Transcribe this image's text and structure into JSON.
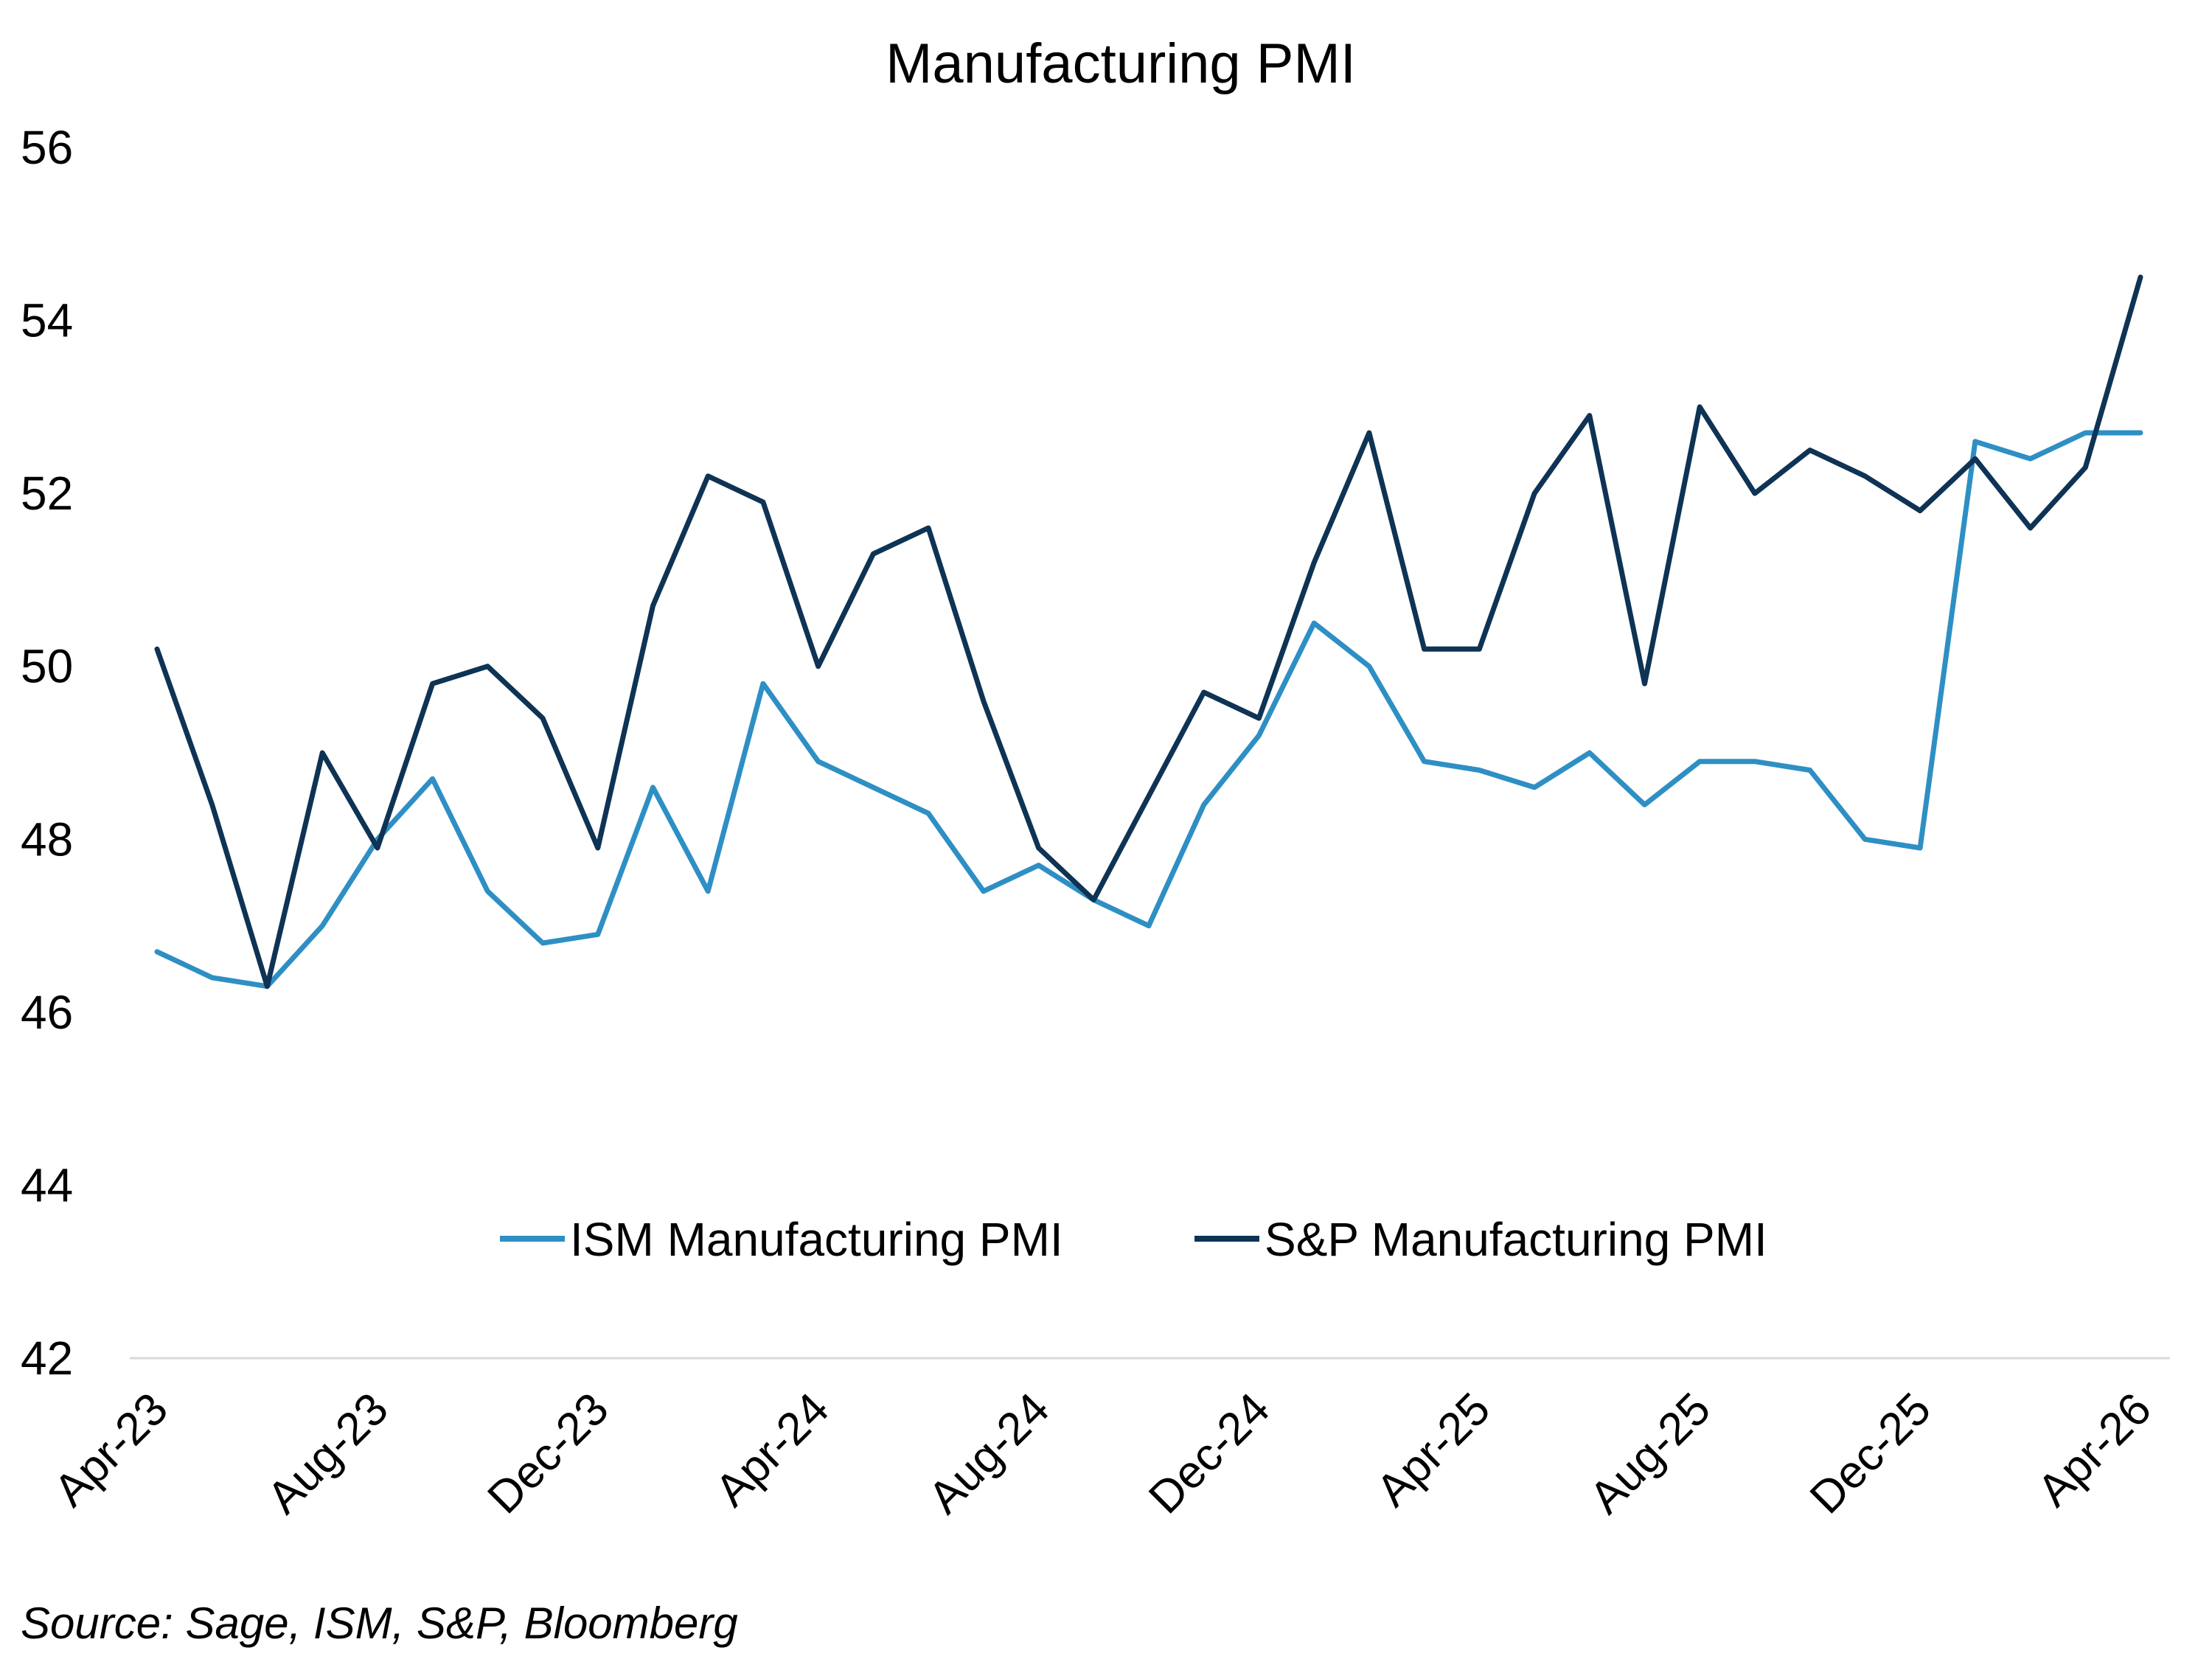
{
  "chart_data": {
    "type": "line",
    "title": "Manufacturing PMI",
    "source": "Source: Sage, ISM, S&P, Bloomberg",
    "x": [
      "Apr-23",
      "May-23",
      "Jun-23",
      "Jul-23",
      "Aug-23",
      "Sep-23",
      "Oct-23",
      "Nov-23",
      "Dec-23",
      "Jan-24",
      "Feb-24",
      "Mar-24",
      "Apr-24",
      "May-24",
      "Jun-24",
      "Jul-24",
      "Aug-24",
      "Sep-24",
      "Oct-24",
      "Nov-24",
      "Dec-24",
      "Jan-25",
      "Feb-25",
      "Mar-25",
      "Apr-25",
      "May-25",
      "Jun-25",
      "Jul-25",
      "Aug-25",
      "Sep-25",
      "Oct-25",
      "Nov-25",
      "Dec-25",
      "Jan-26",
      "Feb-26",
      "Mar-26",
      "Apr-26"
    ],
    "x_tick_labels": [
      "Apr-23",
      "Aug-23",
      "Dec-23",
      "Apr-24",
      "Aug-24",
      "Dec-24",
      "Apr-25",
      "Aug-25",
      "Dec-25",
      "Apr-26"
    ],
    "y_tick_labels": [
      "42",
      "44",
      "46",
      "48",
      "50",
      "52",
      "54",
      "56"
    ],
    "ylim": [
      42,
      56
    ],
    "grid": false,
    "legend_position": "bottom-center-inside",
    "series": [
      {
        "name": "ISM Manufacturing PMI",
        "color": "#2e8fc4",
        "values": [
          46.7,
          46.4,
          46.3,
          47.0,
          48.0,
          48.7,
          47.4,
          46.8,
          46.9,
          48.6,
          47.4,
          49.8,
          48.9,
          48.6,
          48.3,
          47.4,
          47.7,
          47.3,
          47.0,
          48.4,
          49.2,
          50.5,
          50.0,
          48.9,
          48.8,
          48.6,
          49.0,
          48.4,
          48.9,
          48.9,
          48.8,
          48.0,
          47.9,
          52.6,
          52.4,
          52.7,
          52.7
        ]
      },
      {
        "name": "S&P Manufacturing PMI",
        "color": "#0e3354",
        "values": [
          50.2,
          48.4,
          46.3,
          49.0,
          47.9,
          49.8,
          50.0,
          49.4,
          47.9,
          50.7,
          52.2,
          51.9,
          50.0,
          51.3,
          51.6,
          49.6,
          47.9,
          47.3,
          48.5,
          49.7,
          49.4,
          51.2,
          52.7,
          50.2,
          50.2,
          52.0,
          52.9,
          49.8,
          53.0,
          52.0,
          52.5,
          52.2,
          51.8,
          52.4,
          51.6,
          52.3,
          54.5
        ]
      }
    ]
  }
}
